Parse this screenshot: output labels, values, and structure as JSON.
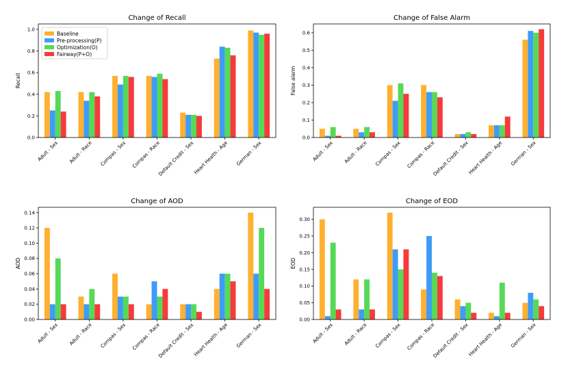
{
  "legend": [
    {
      "name": "Baseline",
      "color": "#FFB031"
    },
    {
      "name": "Pre-processing(P)",
      "color": "#3E9CF8"
    },
    {
      "name": "Optimization(O)",
      "color": "#57D957"
    },
    {
      "name": "Fairway(P+O)",
      "color": "#F53B3B"
    }
  ],
  "chart_data": [
    {
      "type": "bar",
      "title": "Change of Recall",
      "ylabel": "Recall",
      "ylim": [
        0,
        1.05
      ],
      "yticks": [
        "0.0",
        "0.2",
        "0.4",
        "0.6",
        "0.8",
        "1.0"
      ],
      "categories": [
        "Adult - Sex",
        "Adult - Race",
        "Compas - Sex",
        "Compas - Race",
        "Default Credit - Sex",
        "Heart Health - Age",
        "German - Sex"
      ],
      "series": [
        {
          "name": "Baseline",
          "values": [
            0.42,
            0.42,
            0.57,
            0.57,
            0.23,
            0.73,
            0.99
          ]
        },
        {
          "name": "Pre-processing(P)",
          "values": [
            0.25,
            0.34,
            0.49,
            0.56,
            0.21,
            0.84,
            0.97
          ]
        },
        {
          "name": "Optimization(O)",
          "values": [
            0.43,
            0.42,
            0.57,
            0.59,
            0.21,
            0.83,
            0.95
          ]
        },
        {
          "name": "Fairway(P+O)",
          "values": [
            0.24,
            0.38,
            0.56,
            0.54,
            0.2,
            0.76,
            0.96
          ]
        }
      ]
    },
    {
      "type": "bar",
      "title": "Change of False Alarm",
      "ylabel": "False alarm",
      "ylim": [
        0,
        0.65
      ],
      "yticks": [
        "0.0",
        "0.1",
        "0.2",
        "0.3",
        "0.4",
        "0.5",
        "0.6"
      ],
      "categories": [
        "Adult - Sex",
        "Adult - Race",
        "Compas - Sex",
        "Compas - Race",
        "Default Credit - Sex",
        "Heart Health - Age",
        "German - Sex"
      ],
      "series": [
        {
          "name": "Baseline",
          "values": [
            0.05,
            0.05,
            0.3,
            0.3,
            0.02,
            0.07,
            0.56
          ]
        },
        {
          "name": "Pre-processing(P)",
          "values": [
            0.01,
            0.03,
            0.21,
            0.26,
            0.02,
            0.07,
            0.61
          ]
        },
        {
          "name": "Optimization(O)",
          "values": [
            0.06,
            0.06,
            0.31,
            0.26,
            0.03,
            0.07,
            0.6
          ]
        },
        {
          "name": "Fairway(P+O)",
          "values": [
            0.01,
            0.03,
            0.25,
            0.23,
            0.02,
            0.12,
            0.62
          ]
        }
      ]
    },
    {
      "type": "bar",
      "title": "Change of AOD",
      "ylabel": "AOD",
      "ylim": [
        0,
        0.147
      ],
      "yticks": [
        "0.00",
        "0.02",
        "0.04",
        "0.06",
        "0.08",
        "0.10",
        "0.12",
        "0.14"
      ],
      "categories": [
        "Adult - Sex",
        "Adult - Race",
        "Compas - Sex",
        "Compas - Race",
        "Default Credit - Sex",
        "Heart Health - Age",
        "German - Sex"
      ],
      "series": [
        {
          "name": "Baseline",
          "values": [
            0.12,
            0.03,
            0.06,
            0.02,
            0.02,
            0.04,
            0.14
          ]
        },
        {
          "name": "Pre-processing(P)",
          "values": [
            0.02,
            0.02,
            0.03,
            0.05,
            0.02,
            0.06,
            0.06
          ]
        },
        {
          "name": "Optimization(O)",
          "values": [
            0.08,
            0.04,
            0.03,
            0.03,
            0.02,
            0.06,
            0.12
          ]
        },
        {
          "name": "Fairway(P+O)",
          "values": [
            0.02,
            0.02,
            0.02,
            0.04,
            0.01,
            0.05,
            0.04
          ]
        }
      ]
    },
    {
      "type": "bar",
      "title": "Change of EOD",
      "ylabel": "EOD",
      "ylim": [
        0,
        0.336
      ],
      "yticks": [
        "0.00",
        "0.05",
        "0.10",
        "0.15",
        "0.20",
        "0.25",
        "0.30"
      ],
      "categories": [
        "Adult - Sex",
        "Adult - Race",
        "Compas - Sex",
        "Compas - Race",
        "Default Credit - Sex",
        "Heart Health - Age",
        "German - Sex"
      ],
      "series": [
        {
          "name": "Baseline",
          "values": [
            0.3,
            0.12,
            0.32,
            0.09,
            0.06,
            0.02,
            0.05
          ]
        },
        {
          "name": "Pre-processing(P)",
          "values": [
            0.01,
            0.03,
            0.21,
            0.25,
            0.04,
            0.01,
            0.08
          ]
        },
        {
          "name": "Optimization(O)",
          "values": [
            0.23,
            0.12,
            0.15,
            0.14,
            0.05,
            0.11,
            0.06
          ]
        },
        {
          "name": "Fairway(P+O)",
          "values": [
            0.03,
            0.03,
            0.21,
            0.13,
            0.02,
            0.02,
            0.04
          ]
        }
      ]
    }
  ]
}
